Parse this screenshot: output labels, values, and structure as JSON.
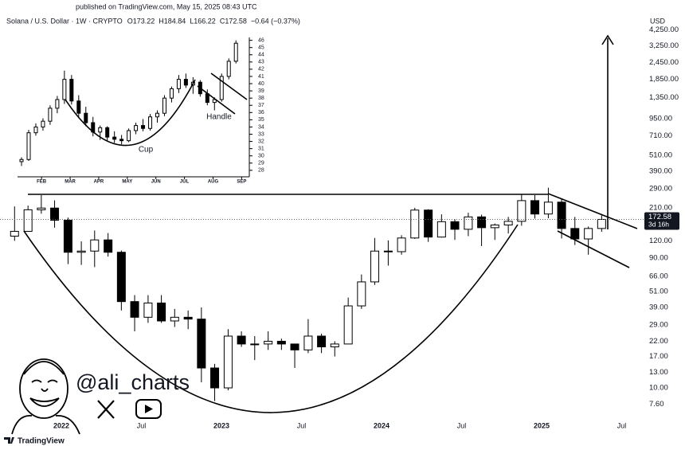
{
  "published": "published on TradingView.com, May 15, 2025 08:43 UTC",
  "watermark": {
    "handle": "@ali_charts"
  },
  "branding": "TradingView",
  "chart_data": [
    {
      "type": "candlestick",
      "symbol": "Solana / U.S. Dollar · 1W · CRYPTO",
      "ohlc_legend": [
        "O173.22",
        "H184.84",
        "L166.22",
        "C172.58",
        "−0.64 (−0.37%)"
      ],
      "y_axis_label": "USD",
      "log_scale": true,
      "grid": false,
      "up_color": "#ffffff",
      "down_color": "#000000",
      "outline_color": "#000000",
      "x": [
        2021.708,
        2021.792,
        2021.875,
        2021.958,
        2022.042,
        2022.125,
        2022.208,
        2022.292,
        2022.375,
        2022.458,
        2022.542,
        2022.625,
        2022.708,
        2022.792,
        2022.875,
        2022.958,
        2023.042,
        2023.125,
        2023.208,
        2023.292,
        2023.375,
        2023.458,
        2023.542,
        2023.625,
        2023.708,
        2023.792,
        2023.875,
        2023.958,
        2024.042,
        2024.125,
        2024.208,
        2024.292,
        2024.375,
        2024.458,
        2024.542,
        2024.625,
        2024.708,
        2024.792,
        2024.875,
        2024.958,
        2025.042,
        2025.125,
        2025.208,
        2025.292,
        2025.375
      ],
      "open": [
        130,
        141,
        203,
        209,
        170,
        99,
        101,
        122,
        99,
        43,
        33,
        42,
        31,
        33,
        32,
        14,
        10,
        24,
        21,
        21,
        22,
        21,
        19,
        24,
        20,
        21,
        40,
        60,
        101,
        100,
        126,
        202,
        128,
        166,
        146,
        180,
        150,
        157,
        167,
        237,
        189,
        231,
        148,
        124,
        148
      ],
      "high": [
        215,
        218,
        260,
        238,
        178,
        119,
        143,
        137,
        102,
        48,
        48,
        48,
        38,
        37,
        39,
        15,
        27,
        26,
        24,
        26,
        23,
        21,
        32,
        25,
        22,
        46,
        68,
        126,
        121,
        132,
        210,
        205,
        188,
        173,
        193,
        187,
        161,
        180,
        264,
        260,
        295,
        246,
        180,
        153,
        184.84
      ],
      "low": [
        120,
        140,
        190,
        150,
        81,
        80,
        77,
        92,
        37,
        26,
        30,
        30,
        28,
        27,
        11,
        8,
        9.6,
        20,
        16,
        19,
        19,
        14,
        18,
        18,
        17,
        21,
        38,
        57,
        79,
        95,
        124,
        118,
        127,
        122,
        130,
        110,
        122,
        136,
        155,
        175,
        176,
        125,
        112,
        95,
        140
      ],
      "close": [
        141,
        203,
        209,
        170,
        99,
        101,
        122,
        99,
        43,
        33,
        42,
        31,
        33,
        32,
        14,
        10,
        24,
        21,
        21,
        22,
        21,
        19,
        24,
        20,
        21,
        40,
        60,
        101,
        100,
        126,
        202,
        128,
        166,
        146,
        180,
        150,
        157,
        167,
        237,
        189,
        231,
        148,
        124,
        148,
        172.58
      ],
      "xlim": [
        2021.617,
        2025.637
      ],
      "xticks": [
        {
          "value": 2022,
          "label": "2022"
        },
        {
          "value": 2022.5,
          "label": "Jul"
        },
        {
          "value": 2023,
          "label": "2023"
        },
        {
          "value": 2023.5,
          "label": "Jul"
        },
        {
          "value": 2024,
          "label": "2024"
        },
        {
          "value": 2024.5,
          "label": "Jul"
        },
        {
          "value": 2025,
          "label": "2025"
        },
        {
          "value": 2025.5,
          "label": "Jul"
        }
      ],
      "ylim": [
        4.9,
        4700
      ],
      "yticks": [
        {
          "value": 4250,
          "label": "4,250.00"
        },
        {
          "value": 3250,
          "label": "3,250.00"
        },
        {
          "value": 2450,
          "label": "2,450.00"
        },
        {
          "value": 1850,
          "label": "1,850.00"
        },
        {
          "value": 1350,
          "label": "1,350.00"
        },
        {
          "value": 950,
          "label": "950.00"
        },
        {
          "value": 710,
          "label": "710.00"
        },
        {
          "value": 510,
          "label": "510.00"
        },
        {
          "value": 390,
          "label": "390.00"
        },
        {
          "value": 290,
          "label": "290.00"
        },
        {
          "value": 210,
          "label": "210.00"
        },
        {
          "value": 120,
          "label": "120.00"
        },
        {
          "value": 90,
          "label": "90.00"
        },
        {
          "value": 66,
          "label": "66.00"
        },
        {
          "value": 51,
          "label": "51.00"
        },
        {
          "value": 39,
          "label": "39.00"
        },
        {
          "value": 29,
          "label": "29.00"
        },
        {
          "value": 22,
          "label": "22.00"
        },
        {
          "value": 17,
          "label": "17.00"
        },
        {
          "value": 13,
          "label": "13.00"
        },
        {
          "value": 10,
          "label": "10.00"
        },
        {
          "value": 7.6,
          "label": "7.60"
        }
      ],
      "last_price": {
        "value": 172.58,
        "label": "172.58"
      },
      "countdown": "3d 16h"
    },
    {
      "type": "candlestick",
      "log_scale": false,
      "grid": false,
      "up_color": "#ffffff",
      "down_color": "#000000",
      "outline_color": "#000000",
      "annotations": [
        "Cup",
        "Handle"
      ],
      "x": [
        1.3,
        1.55,
        1.8,
        2.05,
        2.3,
        2.55,
        2.8,
        3.05,
        3.3,
        3.55,
        3.8,
        4.05,
        4.3,
        4.55,
        4.8,
        5.05,
        5.3,
        5.55,
        5.8,
        6.05,
        6.3,
        6.55,
        6.8,
        7.05,
        7.3,
        7.55,
        7.8,
        8.05,
        8.3,
        8.55,
        8.8
      ],
      "open": [
        29.2,
        29.5,
        33.2,
        34.0,
        34.8,
        36.6,
        37.8,
        40.6,
        37.6,
        35.9,
        34.6,
        33.3,
        33.9,
        32.6,
        32.3,
        32.1,
        33.5,
        34.2,
        33.8,
        35.4,
        35.9,
        38.0,
        39.3,
        40.6,
        39.8,
        40.2,
        38.6,
        37.4,
        37.8,
        41.0,
        43.1
      ],
      "high": [
        29.8,
        33.6,
        34.5,
        35.2,
        37.0,
        38.3,
        41.8,
        41.2,
        38.4,
        36.8,
        35.4,
        34.2,
        34.1,
        33.4,
        32.9,
        33.8,
        34.6,
        35.1,
        35.8,
        36.3,
        38.4,
        39.6,
        41.2,
        41.4,
        40.9,
        40.5,
        39.2,
        38.1,
        41.4,
        43.5,
        46.0
      ],
      "low": [
        28.6,
        29.3,
        32.8,
        33.5,
        34.3,
        35.9,
        37.2,
        37.1,
        35.2,
        34.1,
        32.7,
        32.2,
        32.1,
        31.8,
        31.6,
        31.9,
        33.0,
        33.4,
        33.5,
        34.6,
        35.5,
        37.4,
        38.7,
        39.4,
        38.6,
        38.2,
        37.0,
        36.3,
        37.5,
        40.6,
        42.8
      ],
      "close": [
        29.5,
        33.2,
        34.0,
        34.8,
        36.6,
        37.8,
        40.6,
        37.6,
        35.9,
        34.6,
        33.3,
        33.9,
        32.6,
        32.3,
        32.1,
        33.5,
        34.2,
        33.8,
        35.4,
        35.9,
        38.0,
        39.3,
        40.6,
        39.8,
        40.2,
        38.6,
        37.4,
        37.8,
        41.0,
        43.1,
        45.6
      ],
      "xlim": [
        1.16,
        9.24
      ],
      "xticks": [
        {
          "value": 2,
          "label": "FEB"
        },
        {
          "value": 3,
          "label": "MAR"
        },
        {
          "value": 4,
          "label": "APR"
        },
        {
          "value": 5,
          "label": "MAY"
        },
        {
          "value": 6,
          "label": "JUN"
        },
        {
          "value": 7,
          "label": "JUL"
        },
        {
          "value": 8,
          "label": "AUG"
        },
        {
          "value": 9,
          "label": "SEP"
        }
      ],
      "ylim": [
        27.1,
        46.4
      ],
      "yticks": [
        28,
        29,
        30,
        31,
        32,
        33,
        34,
        35,
        36,
        37,
        38,
        39,
        40,
        41,
        42,
        43,
        44,
        45,
        46
      ]
    }
  ]
}
